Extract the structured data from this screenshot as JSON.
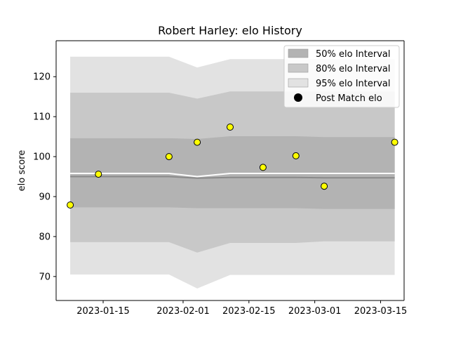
{
  "chart_data": {
    "type": "area",
    "title": "Robert Harley: elo History",
    "xlabel": "",
    "ylabel": "elo score",
    "x_ticks": [
      "2023-01-15",
      "2023-02-01",
      "2023-02-15",
      "2023-03-01",
      "2023-03-15"
    ],
    "y_ticks": [
      "70",
      "80",
      "90",
      "100",
      "110",
      "120"
    ],
    "xlim": [
      "2023-01-05",
      "2023-03-20"
    ],
    "ylim": [
      64,
      129
    ],
    "grid": false,
    "legend_position": "top-right",
    "legend": [
      {
        "label": "50% elo Interval",
        "color": "#b3b3b3"
      },
      {
        "label": "80% elo Interval",
        "color": "#c8c8c8"
      },
      {
        "label": "95% elo Interval",
        "color": "#e2e2e2"
      },
      {
        "label": "Post Match elo",
        "color": "#000000"
      }
    ],
    "x": [
      "2023-01-08",
      "2023-01-29",
      "2023-02-04",
      "2023-02-11",
      "2023-02-25",
      "2023-03-03",
      "2023-03-18"
    ],
    "mean": [
      95.8,
      95.8,
      95.0,
      95.8,
      95.8,
      95.8,
      95.8
    ],
    "median_line": [
      95.0,
      95.0,
      94.6,
      94.8,
      94.8,
      94.7,
      94.7
    ],
    "band_50": {
      "lower": [
        87.3,
        87.3,
        87.1,
        87.1,
        87.1,
        86.9,
        86.9
      ],
      "upper": [
        104.6,
        104.6,
        104.4,
        105.1,
        105.1,
        104.9,
        104.9
      ]
    },
    "band_80": {
      "lower": [
        78.6,
        78.6,
        76.0,
        78.4,
        78.4,
        78.8,
        78.8
      ],
      "upper": [
        116.0,
        116.0,
        114.5,
        116.3,
        116.3,
        116.3,
        116.3
      ]
    },
    "band_95": {
      "lower": [
        70.5,
        70.5,
        67.0,
        70.4,
        70.4,
        70.4,
        70.4
      ],
      "upper": [
        125.0,
        125.0,
        122.3,
        124.4,
        124.4,
        124.4,
        124.4
      ]
    },
    "series": [
      {
        "name": "Post Match elo",
        "x": [
          "2023-01-08",
          "2023-01-14",
          "2023-01-29",
          "2023-02-04",
          "2023-02-11",
          "2023-02-18",
          "2023-02-25",
          "2023-03-03",
          "2023-03-18"
        ],
        "values": [
          87.9,
          95.6,
          100.0,
          103.6,
          107.4,
          97.3,
          100.2,
          92.6,
          103.6
        ],
        "color": "#ffff00"
      }
    ]
  }
}
